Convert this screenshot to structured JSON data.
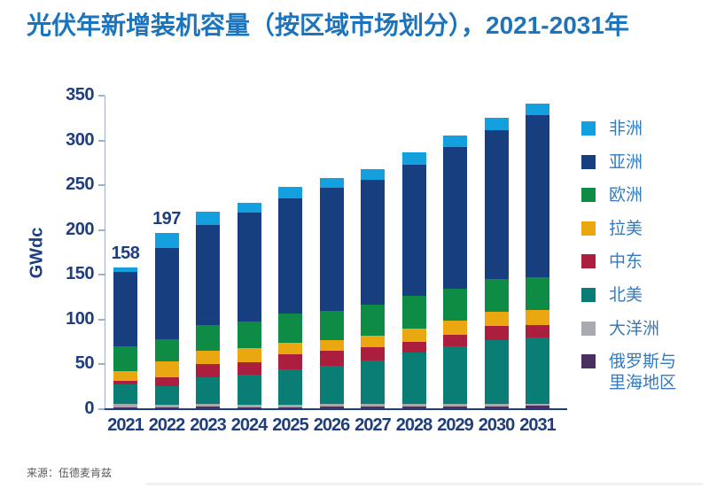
{
  "page": {
    "title": "光伏年新增装机容量（按区域市场划分），2021-2031年",
    "source": "来源：伍德麦肯兹",
    "title_color": "#1C75BC",
    "axis_text_color": "#1F3E7D",
    "legend_text_color": "#3579BE"
  },
  "chart_data": {
    "type": "bar",
    "stacked": true,
    "title": "光伏年新增装机容量（按区域市场划分），2021-2031年",
    "ylabel": "GWdc",
    "ylim": [
      0,
      350
    ],
    "ytick_step": 50,
    "yticks": [
      0,
      50,
      100,
      150,
      200,
      250,
      300,
      350
    ],
    "grid": false,
    "legend_position": "right",
    "categories": [
      "2021",
      "2022",
      "2023",
      "2024",
      "2025",
      "2026",
      "2027",
      "2028",
      "2029",
      "2030",
      "2031"
    ],
    "series_order": "bottom-to-top",
    "series": [
      {
        "key": "russia-caspian",
        "name": "俄罗斯与里海地区",
        "color": "#4A3061",
        "values": [
          2,
          2,
          3,
          2,
          2,
          3,
          3,
          3,
          3,
          3,
          4
        ]
      },
      {
        "key": "oceania",
        "name": "大洋洲",
        "color": "#A9AAAF",
        "values": [
          4,
          3,
          3,
          3,
          3,
          3,
          3,
          3,
          3,
          3,
          2
        ]
      },
      {
        "key": "north-america",
        "name": "北美",
        "color": "#0A7E74",
        "values": [
          22,
          21,
          30,
          34,
          39,
          42,
          48,
          57,
          64,
          71,
          74
        ]
      },
      {
        "key": "middle-east",
        "name": "中东",
        "color": "#AC1E3E",
        "values": [
          4,
          10,
          14,
          13,
          17,
          17,
          15,
          12,
          13,
          16,
          14
        ]
      },
      {
        "key": "latin-america",
        "name": "拉美",
        "color": "#EBA710",
        "values": [
          10,
          17,
          15,
          16,
          13,
          12,
          13,
          15,
          16,
          16,
          17
        ]
      },
      {
        "key": "europe",
        "name": "欧洲",
        "color": "#0E8C46",
        "values": [
          28,
          25,
          29,
          30,
          33,
          33,
          35,
          37,
          35,
          36,
          36
        ]
      },
      {
        "key": "asia",
        "name": "亚洲",
        "color": "#173E7E",
        "values": [
          83,
          102,
          112,
          121,
          128,
          137,
          139,
          146,
          159,
          166,
          181
        ]
      },
      {
        "key": "africa",
        "name": "非洲",
        "color": "#14A0DF",
        "values": [
          5,
          17,
          14,
          11,
          13,
          11,
          12,
          14,
          13,
          14,
          13
        ]
      }
    ],
    "totals": [
      158,
      197,
      220,
      230,
      248,
      258,
      268,
      287,
      306,
      325,
      341
    ],
    "bar_total_labels": {
      "2021": "158",
      "2022": "197"
    },
    "legend_order_top_to_bottom": [
      "非洲",
      "亚洲",
      "欧洲",
      "拉美",
      "中东",
      "北美",
      "大洋洲",
      "俄罗斯与里海地区"
    ]
  }
}
